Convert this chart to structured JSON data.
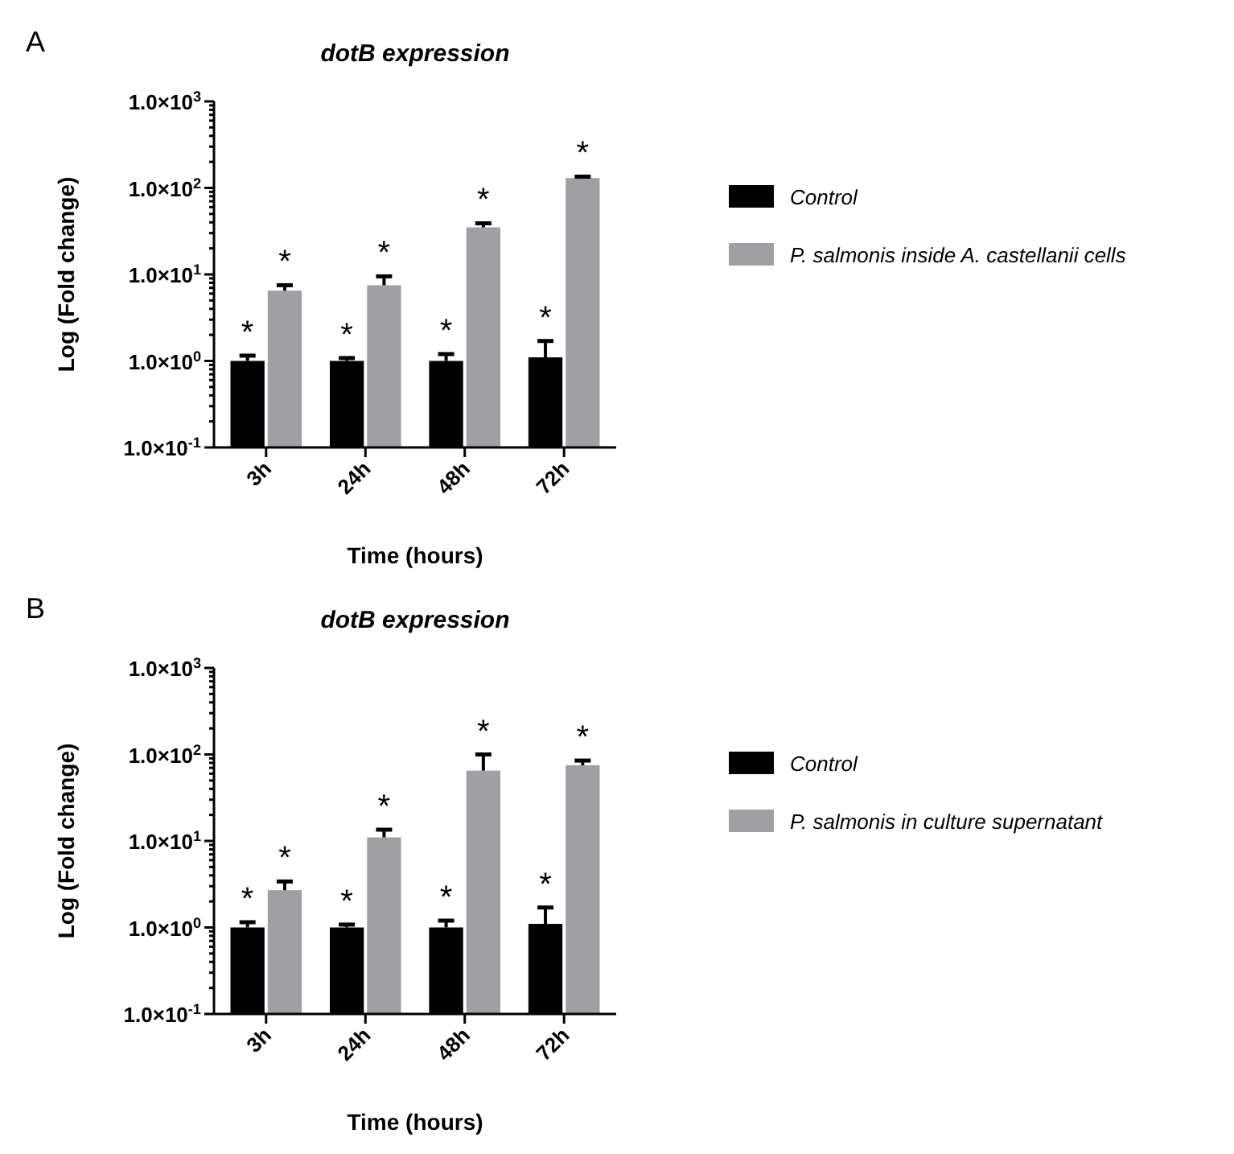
{
  "chart_data": [
    {
      "type": "bar",
      "title": "dotB expression",
      "xlabel": "Time (hours)",
      "ylabel": "Log (Fold change)",
      "annotations": [
        "A"
      ],
      "categories": [
        "3h",
        "24h",
        "48h",
        "72h"
      ],
      "log": "y",
      "ylim": [
        0.1,
        1000
      ],
      "yticks": [
        {
          "value": 0.1,
          "label": "1.0×10$^{-1}$"
        },
        {
          "value": 0.2,
          "label": null
        },
        {
          "value": 0.3,
          "label": null
        },
        {
          "value": 0.4,
          "label": null
        },
        {
          "value": 0.5,
          "label": null
        },
        {
          "value": 0.6,
          "label": null
        },
        {
          "value": 0.7,
          "label": null
        },
        {
          "value": 0.8,
          "label": null
        },
        {
          "value": 0.9,
          "label": null
        },
        {
          "value": 1,
          "label": "1.0×10$^{0}$"
        },
        {
          "value": 2,
          "label": null
        },
        {
          "value": 3,
          "label": null
        },
        {
          "value": 4,
          "label": null
        },
        {
          "value": 5,
          "label": null
        },
        {
          "value": 6,
          "label": null
        },
        {
          "value": 7,
          "label": null
        },
        {
          "value": 8,
          "label": null
        },
        {
          "value": 9,
          "label": null
        },
        {
          "value": 10,
          "label": "1.0×10$^{1}$"
        },
        {
          "value": 20,
          "label": null
        },
        {
          "value": 30,
          "label": null
        },
        {
          "value": 40,
          "label": null
        },
        {
          "value": 50,
          "label": null
        },
        {
          "value": 60,
          "label": null
        },
        {
          "value": 70,
          "label": null
        },
        {
          "value": 80,
          "label": null
        },
        {
          "value": 90,
          "label": null
        },
        {
          "value": 100,
          "label": "1.0×10$^{2}$"
        },
        {
          "value": 200,
          "label": null
        },
        {
          "value": 300,
          "label": null
        },
        {
          "value": 400,
          "label": null
        },
        {
          "value": 500,
          "label": null
        },
        {
          "value": 600,
          "label": null
        },
        {
          "value": 700,
          "label": null
        },
        {
          "value": 800,
          "label": null
        },
        {
          "value": 900,
          "label": null
        },
        {
          "value": 1000,
          "label": "1.0×10$^{3}$"
        }
      ],
      "grid": false,
      "legend": "right",
      "series": [
        {
          "name": "Control",
          "color": "#000000",
          "values": [
            1.0,
            1.0,
            1.0,
            1.1
          ],
          "errors": [
            [
              1.0,
              1.15
            ],
            [
              1.0,
              1.08
            ],
            [
              1.0,
              1.2
            ],
            [
              1.1,
              1.7
            ]
          ],
          "value_labels": [
            "*",
            "*",
            "*",
            "*"
          ]
        },
        {
          "name": "P. salmonis inside A. castellanii cells",
          "color": "#a0a0a4",
          "values": [
            6.5,
            7.5,
            35,
            130
          ],
          "errors": [
            [
              6.5,
              7.5
            ],
            [
              7.5,
              9.5
            ],
            [
              35,
              39
            ],
            [
              130,
              135
            ]
          ],
          "value_labels": [
            "*",
            "*",
            "*",
            "*"
          ]
        }
      ]
    },
    {
      "type": "bar",
      "title": "dotB expression",
      "xlabel": "Time (hours)",
      "ylabel": "Log (Fold change)",
      "annotations": [
        "B"
      ],
      "categories": [
        "3h",
        "24h",
        "48h",
        "72h"
      ],
      "log": "y",
      "ylim": [
        0.1,
        1000
      ],
      "yticks": [
        {
          "value": 0.1,
          "label": "1.0×10$^{-1}$"
        },
        {
          "value": 0.2,
          "label": null
        },
        {
          "value": 0.3,
          "label": null
        },
        {
          "value": 0.4,
          "label": null
        },
        {
          "value": 0.5,
          "label": null
        },
        {
          "value": 0.6,
          "label": null
        },
        {
          "value": 0.7,
          "label": null
        },
        {
          "value": 0.8,
          "label": null
        },
        {
          "value": 0.9,
          "label": null
        },
        {
          "value": 1,
          "label": "1.0×10$^{0}$"
        },
        {
          "value": 2,
          "label": null
        },
        {
          "value": 3,
          "label": null
        },
        {
          "value": 4,
          "label": null
        },
        {
          "value": 5,
          "label": null
        },
        {
          "value": 6,
          "label": null
        },
        {
          "value": 7,
          "label": null
        },
        {
          "value": 8,
          "label": null
        },
        {
          "value": 9,
          "label": null
        },
        {
          "value": 10,
          "label": "1.0×10$^{1}$"
        },
        {
          "value": 20,
          "label": null
        },
        {
          "value": 30,
          "label": null
        },
        {
          "value": 40,
          "label": null
        },
        {
          "value": 50,
          "label": null
        },
        {
          "value": 60,
          "label": null
        },
        {
          "value": 70,
          "label": null
        },
        {
          "value": 80,
          "label": null
        },
        {
          "value": 90,
          "label": null
        },
        {
          "value": 100,
          "label": "1.0×10$^{2}$"
        },
        {
          "value": 200,
          "label": null
        },
        {
          "value": 300,
          "label": null
        },
        {
          "value": 400,
          "label": null
        },
        {
          "value": 500,
          "label": null
        },
        {
          "value": 600,
          "label": null
        },
        {
          "value": 700,
          "label": null
        },
        {
          "value": 800,
          "label": null
        },
        {
          "value": 900,
          "label": null
        },
        {
          "value": 1000,
          "label": "1.0×10$^{3}$"
        }
      ],
      "grid": false,
      "legend": "right",
      "series": [
        {
          "name": "Control",
          "color": "#000000",
          "values": [
            1.0,
            1.0,
            1.0,
            1.1
          ],
          "errors": [
            [
              1.0,
              1.15
            ],
            [
              1.0,
              1.08
            ],
            [
              1.0,
              1.2
            ],
            [
              1.1,
              1.7
            ]
          ],
          "value_labels": [
            "*",
            "*",
            "*",
            "*"
          ]
        },
        {
          "name": "P. salmonis in culture supernatant",
          "color": "#a0a0a4",
          "values": [
            2.7,
            11,
            65,
            75
          ],
          "errors": [
            [
              2.7,
              3.4
            ],
            [
              11,
              13.5
            ],
            [
              65,
              100
            ],
            [
              75,
              85
            ]
          ],
          "value_labels": [
            "*",
            "*",
            "*",
            "*"
          ]
        }
      ]
    }
  ]
}
